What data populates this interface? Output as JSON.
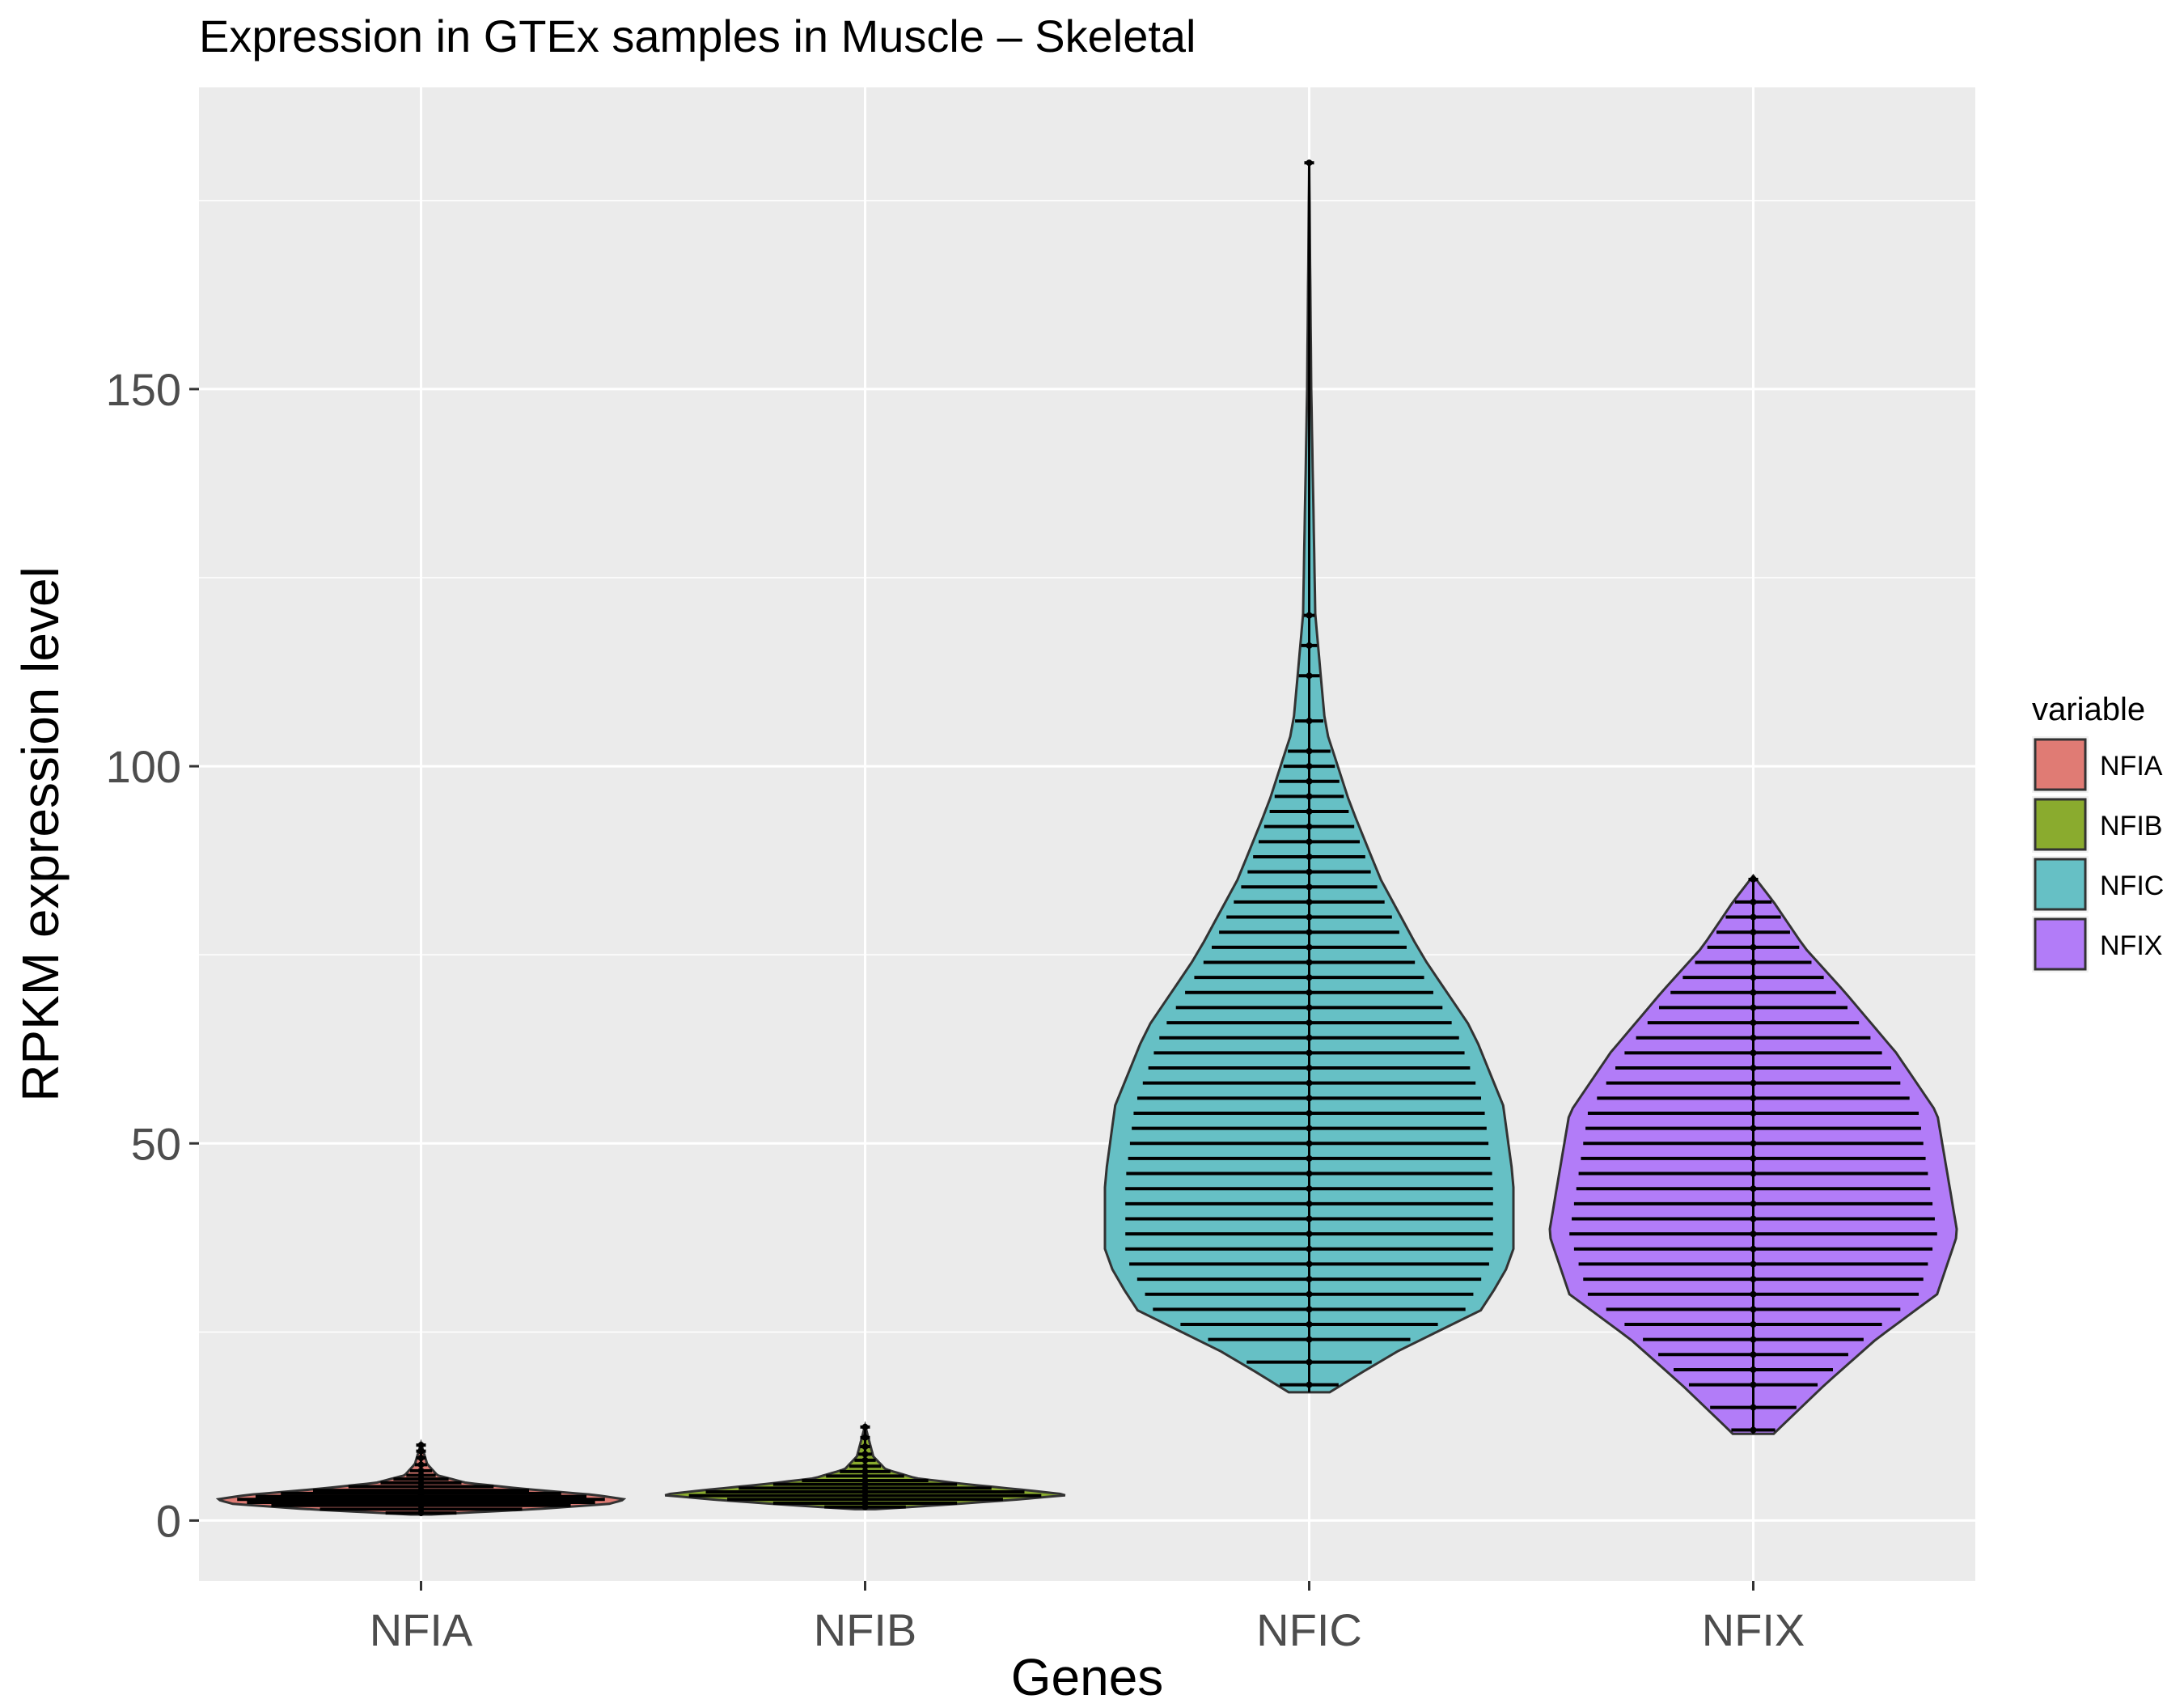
{
  "chart_data": {
    "type": "violin",
    "title": "Expression in GTEx samples in Muscle – Skeletal",
    "xlabel": "Genes",
    "ylabel": "RPKM expression level",
    "categories": [
      "NFIA",
      "NFIB",
      "NFIC",
      "NFIX"
    ],
    "ylim": [
      -8,
      190
    ],
    "yticks": [
      0,
      50,
      100,
      150
    ],
    "grid": true,
    "legend": {
      "title": "variable",
      "position": "right"
    },
    "series": [
      {
        "name": "NFIA",
        "color": "#e07b74",
        "min": 0.8,
        "max": 10.2,
        "median": 2.8,
        "profile": [
          [
            0.8,
            0.05
          ],
          [
            1.5,
            0.55
          ],
          [
            2.2,
            0.92
          ],
          [
            2.8,
            1.0
          ],
          [
            3.4,
            0.85
          ],
          [
            4.2,
            0.5
          ],
          [
            5.0,
            0.22
          ],
          [
            6.0,
            0.08
          ],
          [
            7.5,
            0.03
          ],
          [
            10.2,
            0.0
          ]
        ],
        "marks": [
          1.0,
          1.5,
          2.0,
          2.4,
          2.8,
          3.2,
          3.6,
          4.0,
          4.5,
          5.0,
          5.5,
          6.0,
          6.6,
          7.4,
          8.3,
          9.2,
          10.0
        ]
      },
      {
        "name": "NFIB",
        "color": "#8aab2e",
        "min": 1.5,
        "max": 12.6,
        "median": 3.4,
        "profile": [
          [
            1.5,
            0.05
          ],
          [
            2.2,
            0.45
          ],
          [
            2.8,
            0.75
          ],
          [
            3.4,
            1.0
          ],
          [
            4.0,
            0.8
          ],
          [
            4.8,
            0.5
          ],
          [
            5.6,
            0.25
          ],
          [
            6.8,
            0.1
          ],
          [
            8.5,
            0.04
          ],
          [
            12.6,
            0.0
          ]
        ],
        "marks": [
          1.8,
          2.3,
          2.8,
          3.3,
          3.8,
          4.3,
          4.8,
          5.3,
          5.9,
          6.5,
          7.2,
          8.0,
          8.8,
          9.8,
          11.0,
          12.4
        ]
      },
      {
        "name": "NFIC",
        "color": "#66c0c5",
        "min": 17.0,
        "max": 180.0,
        "median": 48.0,
        "profile": [
          [
            17,
            0.1
          ],
          [
            22,
            0.4
          ],
          [
            28,
            0.85
          ],
          [
            35,
            1.0
          ],
          [
            45,
            1.0
          ],
          [
            55,
            0.95
          ],
          [
            65,
            0.8
          ],
          [
            75,
            0.55
          ],
          [
            85,
            0.35
          ],
          [
            95,
            0.2
          ],
          [
            105,
            0.08
          ],
          [
            120,
            0.03
          ],
          [
            150,
            0.01
          ],
          [
            180,
            0.0
          ]
        ],
        "marks": [
          18,
          21,
          24,
          26,
          28,
          30,
          32,
          34,
          36,
          38,
          40,
          42,
          44,
          46,
          48,
          50,
          52,
          54,
          56,
          58,
          60,
          62,
          64,
          66,
          68,
          70,
          72,
          74,
          76,
          78,
          80,
          82,
          84,
          86,
          88,
          90,
          92,
          94,
          96,
          98,
          100,
          102,
          106,
          112,
          116,
          120,
          180
        ]
      },
      {
        "name": "NFIX",
        "color": "#b27cf8",
        "min": 11.5,
        "max": 85.5,
        "median": 44.0,
        "profile": [
          [
            11.5,
            0.1
          ],
          [
            18,
            0.35
          ],
          [
            24,
            0.6
          ],
          [
            30,
            0.9
          ],
          [
            38,
            1.0
          ],
          [
            46,
            0.95
          ],
          [
            54,
            0.9
          ],
          [
            62,
            0.7
          ],
          [
            70,
            0.45
          ],
          [
            76,
            0.25
          ],
          [
            82,
            0.1
          ],
          [
            85.5,
            0.0
          ]
        ],
        "marks": [
          12,
          15,
          18,
          20,
          22,
          24,
          26,
          28,
          30,
          32,
          34,
          36,
          38,
          40,
          42,
          44,
          46,
          48,
          50,
          52,
          54,
          56,
          58,
          60,
          62,
          64,
          66,
          68,
          70,
          72,
          74,
          76,
          78,
          80,
          82,
          85
        ]
      }
    ]
  }
}
